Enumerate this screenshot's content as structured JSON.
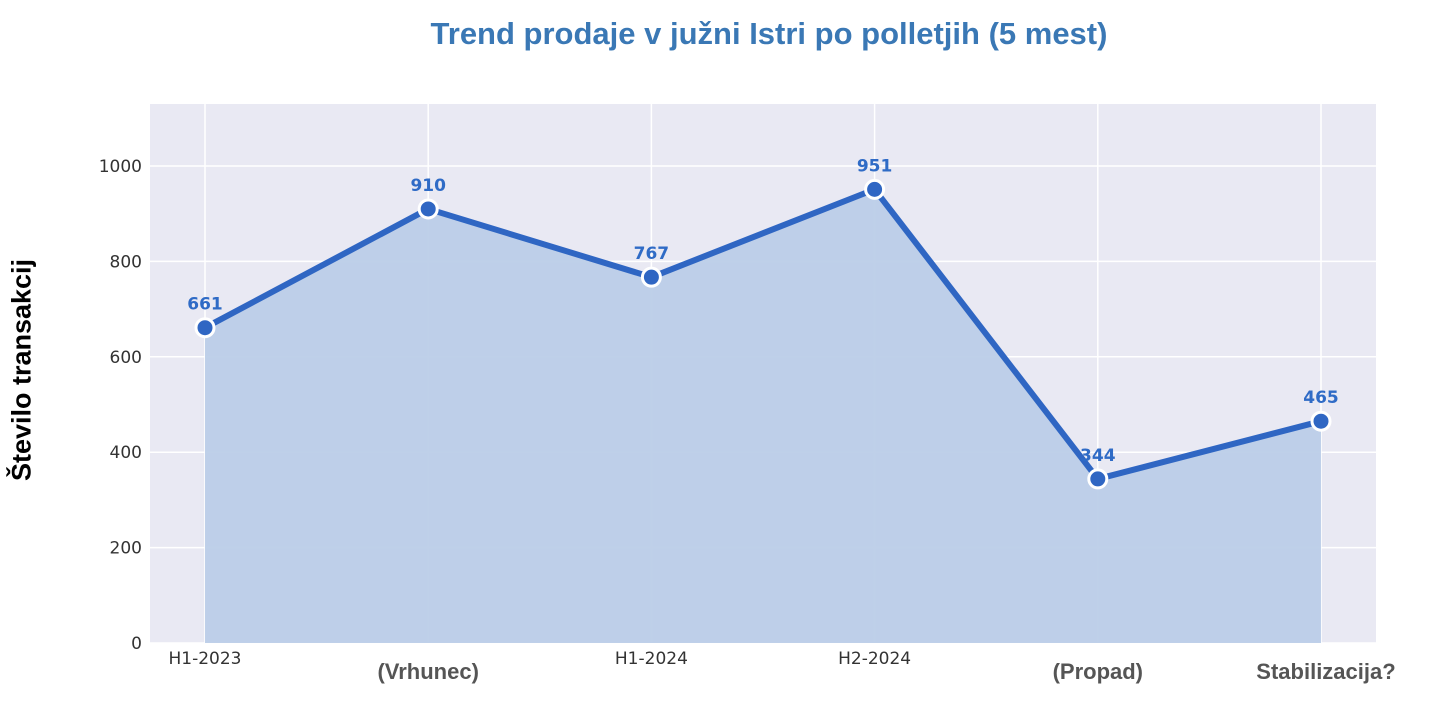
{
  "chart_data": {
    "type": "area",
    "title": "Trend prodaje v južni Istri po polletjih (5 mest)",
    "ylabel": "Število transakcij",
    "xlabel": "",
    "categories": [
      "H1-2023",
      "(Vrhunec)",
      "H1-2024",
      "H2-2024",
      "(Propad)",
      "Stabilizacija?"
    ],
    "values": [
      661,
      910,
      767,
      951,
      344,
      465
    ],
    "data_labels": [
      "661",
      "910",
      "767",
      "951",
      "344",
      "465"
    ],
    "ylim": [
      0,
      1130
    ],
    "yticks": [
      0,
      200,
      400,
      600,
      800,
      1000
    ],
    "ytick_labels": [
      "0",
      "200",
      "400",
      "600",
      "800",
      "1000"
    ],
    "grid": true,
    "colors": {
      "line": "#2f66c3",
      "fill": "#bccee8",
      "plot_background": "#e9e9f3",
      "grid": "#ffffff",
      "title": "#3a78b5",
      "data_label": "#2f6bc6"
    }
  }
}
